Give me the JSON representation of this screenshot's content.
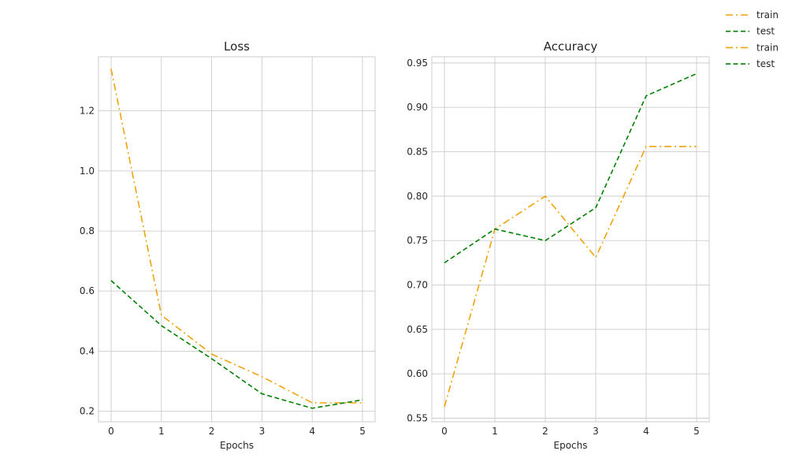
{
  "chart_data": [
    {
      "type": "line",
      "title": "Loss",
      "xlabel": "Epochs",
      "ylabel": "",
      "x": [
        0,
        1,
        2,
        3,
        4,
        5
      ],
      "xticks": [
        "0",
        "1",
        "2",
        "3",
        "4",
        "5"
      ],
      "yticks": [
        "0.2",
        "0.4",
        "0.6",
        "0.8",
        "1.0",
        "1.2"
      ],
      "xlim": [
        -0.25,
        5.25
      ],
      "ylim": [
        0.165,
        1.38
      ],
      "grid": true,
      "series": [
        {
          "name": "train",
          "values": [
            1.34,
            0.52,
            0.39,
            0.315,
            0.228,
            0.228
          ],
          "color": "#f0a30a",
          "dash": "dashdot"
        },
        {
          "name": "test",
          "values": [
            0.635,
            0.485,
            0.375,
            0.258,
            0.21,
            0.238
          ],
          "color": "#008000",
          "dash": "dashed"
        }
      ]
    },
    {
      "type": "line",
      "title": "Accuracy",
      "xlabel": "Epochs",
      "ylabel": "",
      "x": [
        0,
        1,
        2,
        3,
        4,
        5
      ],
      "xticks": [
        "0",
        "1",
        "2",
        "3",
        "4",
        "5"
      ],
      "yticks": [
        "0.55",
        "0.60",
        "0.65",
        "0.70",
        "0.75",
        "0.80",
        "0.85",
        "0.90",
        "0.95"
      ],
      "xlim": [
        -0.25,
        5.25
      ],
      "ylim": [
        0.546,
        0.957
      ],
      "grid": true,
      "series": [
        {
          "name": "train",
          "values": [
            0.563,
            0.763,
            0.8,
            0.731,
            0.856,
            0.856
          ],
          "color": "#f0a30a",
          "dash": "dashdot"
        },
        {
          "name": "test",
          "values": [
            0.725,
            0.763,
            0.75,
            0.787,
            0.913,
            0.938
          ],
          "color": "#008000",
          "dash": "dashed"
        }
      ]
    }
  ],
  "legend": {
    "position": "top-right",
    "entries": [
      {
        "label": "train",
        "color": "#f0a30a",
        "dash": "dashdot"
      },
      {
        "label": "test",
        "color": "#008000",
        "dash": "dashed"
      },
      {
        "label": "train",
        "color": "#f0a30a",
        "dash": "dashdot"
      },
      {
        "label": "test",
        "color": "#008000",
        "dash": "dashed"
      }
    ]
  }
}
